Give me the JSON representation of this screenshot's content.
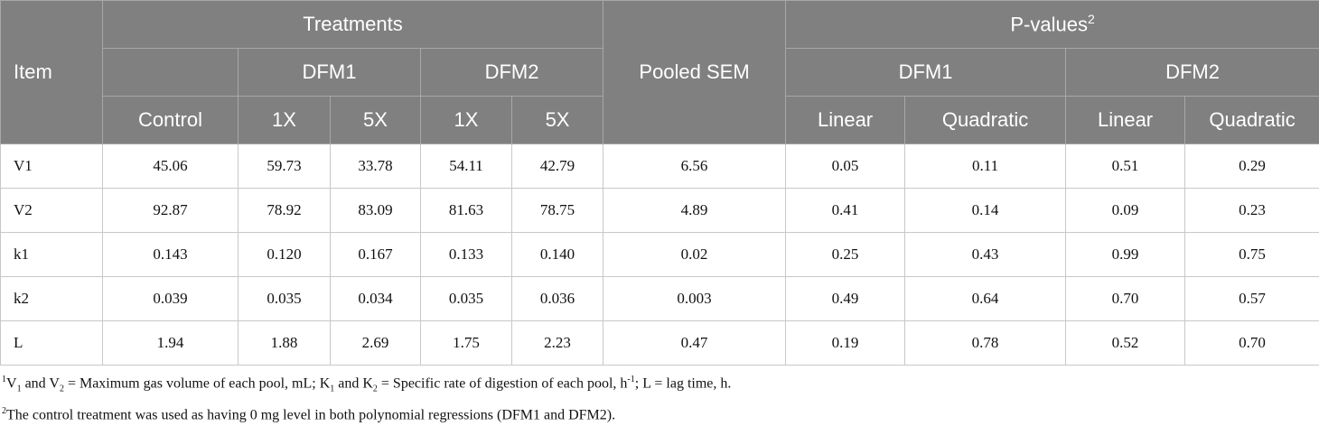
{
  "header": {
    "item": "Item",
    "treatments": "Treatments",
    "dfm1": "DFM1",
    "dfm2": "DFM2",
    "pooled_sem": "Pooled SEM",
    "p_values": "P-values",
    "p_values_note": "2",
    "p_dfm1": "DFM1",
    "p_dfm2": "DFM2",
    "columns": [
      "Control",
      "1X",
      "5X",
      "1X",
      "5X",
      "Linear",
      "Quadratic",
      "Linear",
      "Quadratic"
    ]
  },
  "table": {
    "rows": [
      [
        "V1",
        "45.06",
        "59.73",
        "33.78",
        "54.11",
        "42.79",
        "6.56",
        "0.05",
        "0.11",
        "0.51",
        "0.29"
      ],
      [
        "V2",
        "92.87",
        "78.92",
        "83.09",
        "81.63",
        "78.75",
        "4.89",
        "0.41",
        "0.14",
        "0.09",
        "0.23"
      ],
      [
        "k1",
        "0.143",
        "0.120",
        "0.167",
        "0.133",
        "0.140",
        "0.02",
        "0.25",
        "0.43",
        "0.99",
        "0.75"
      ],
      [
        "k2",
        "0.039",
        "0.035",
        "0.034",
        "0.035",
        "0.036",
        "0.003",
        "0.49",
        "0.64",
        "0.70",
        "0.57"
      ],
      [
        "L",
        "1.94",
        "1.88",
        "2.69",
        "1.75",
        "2.23",
        "0.47",
        "0.19",
        "0.78",
        "0.52",
        "0.70"
      ]
    ]
  },
  "footnotes": [
    [
      "1",
      "V",
      "1",
      " and V",
      "2",
      " = Maximum gas volume of each pool, mL; K",
      "1",
      " and K",
      "2",
      " = Specific rate of digestion of each pool, h",
      "-1",
      "; L = lag time, h."
    ],
    [
      "2",
      "The control treatment was used as having 0 mg level in both polynomial regressions (DFM1 and DFM2)."
    ]
  ]
}
